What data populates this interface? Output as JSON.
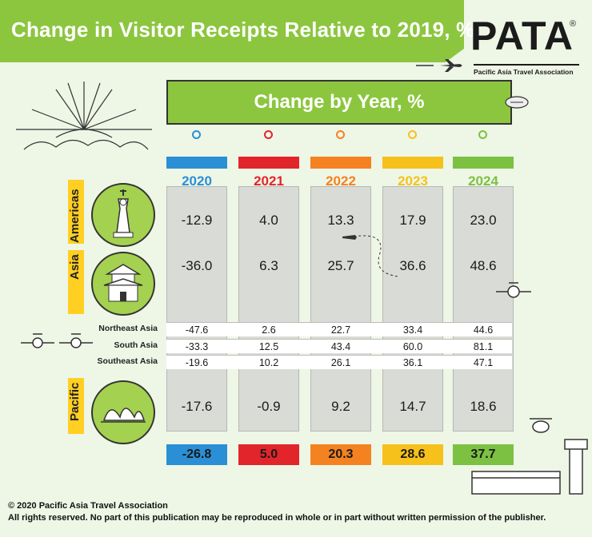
{
  "title": "Change in Visitor Receipts Relative to 2019, %",
  "logo": {
    "text": "PATA",
    "registered": "®",
    "subtitle": "Pacific Asia Travel Association"
  },
  "panel_title": "Change by Year, %",
  "colors": {
    "2020": "#2b8fd6",
    "2021": "#e2252b",
    "2022": "#f58220",
    "2023": "#f6c11b",
    "2024": "#7cc142",
    "accent_green": "#8cc63f",
    "tab_yellow": "#ffcf22"
  },
  "chart_data": {
    "type": "table",
    "title": "Change in Visitor Receipts Relative to 2019, %",
    "subtitle": "Change by Year, %",
    "columns": [
      "2020",
      "2021",
      "2022",
      "2023",
      "2024"
    ],
    "rows": [
      {
        "label": "Americas",
        "values": [
          "-12.9",
          "4.0",
          "13.3",
          "17.9",
          "23.0"
        ]
      },
      {
        "label": "Asia",
        "values": [
          "-36.0",
          "6.3",
          "25.7",
          "36.6",
          "48.6"
        ]
      },
      {
        "label": "Northeast Asia",
        "values": [
          "-47.6",
          "2.6",
          "22.7",
          "33.4",
          "44.6"
        ]
      },
      {
        "label": "South Asia",
        "values": [
          "-33.3",
          "12.5",
          "43.4",
          "60.0",
          "81.1"
        ]
      },
      {
        "label": "Southeast Asia",
        "values": [
          "-19.6",
          "10.2",
          "26.1",
          "36.1",
          "47.1"
        ]
      },
      {
        "label": "Pacific",
        "values": [
          "-17.6",
          "-0.9",
          "9.2",
          "14.7",
          "18.6"
        ]
      }
    ],
    "totals": [
      "-26.8",
      "5.0",
      "20.3",
      "28.6",
      "37.7"
    ]
  },
  "footer": {
    "copyright": "© 2020 Pacific Asia Travel Association",
    "rights": "All rights reserved. No part of this publication may be reproduced in whole or in part without written permission of the publisher."
  }
}
